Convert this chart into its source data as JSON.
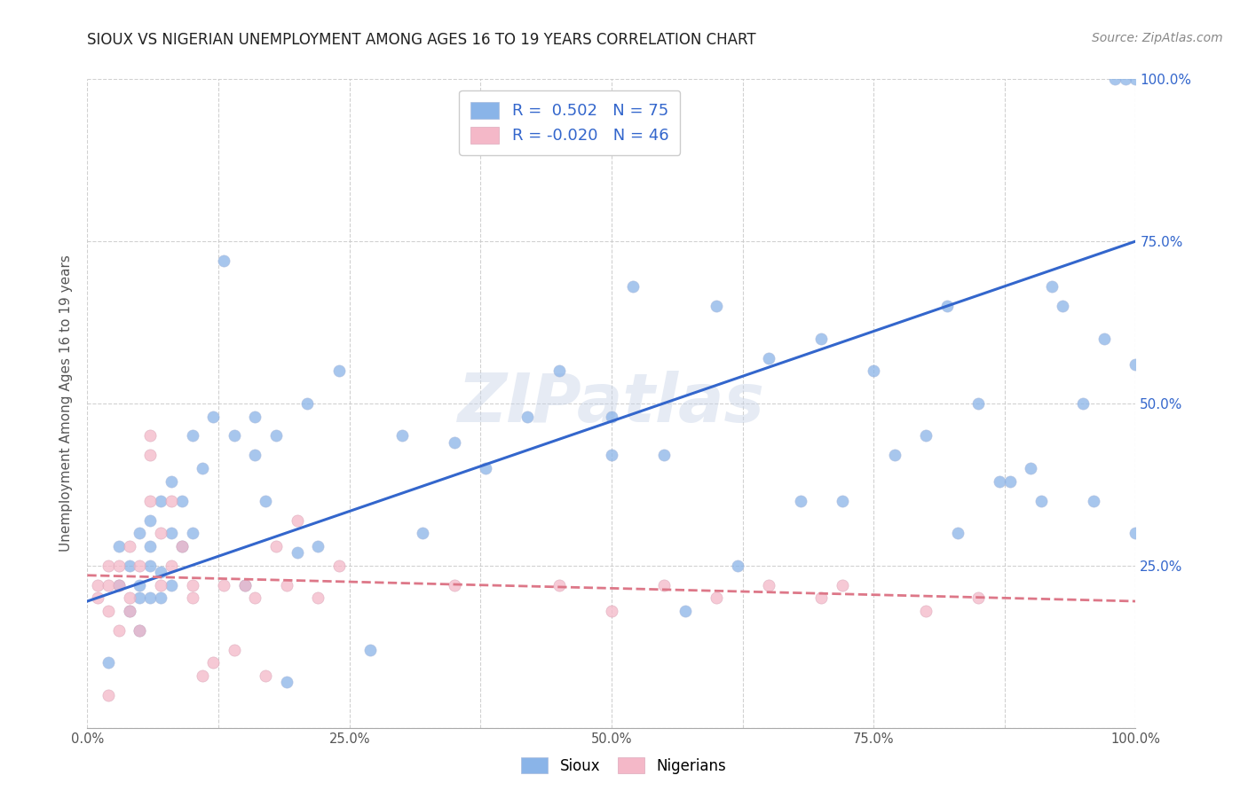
{
  "title": "SIOUX VS NIGERIAN UNEMPLOYMENT AMONG AGES 16 TO 19 YEARS CORRELATION CHART",
  "source": "Source: ZipAtlas.com",
  "ylabel": "Unemployment Among Ages 16 to 19 years",
  "xlim": [
    0.0,
    1.0
  ],
  "ylim": [
    0.0,
    1.0
  ],
  "xticks": [
    0.0,
    0.125,
    0.25,
    0.375,
    0.5,
    0.625,
    0.75,
    0.875,
    1.0
  ],
  "xticklabels": [
    "0.0%",
    "",
    "25.0%",
    "",
    "50.0%",
    "",
    "75.0%",
    "",
    "100.0%"
  ],
  "yticks_right": [
    0.25,
    0.5,
    0.75,
    1.0
  ],
  "yticklabels_right": [
    "25.0%",
    "50.0%",
    "75.0%",
    "100.0%"
  ],
  "sioux_color": "#8ab4e8",
  "nigerian_color": "#f4b8c8",
  "sioux_line_color": "#3366cc",
  "nigerian_line_color": "#dd7788",
  "watermark": "ZIPatlas",
  "legend_R_sioux": "R =  0.502",
  "legend_N_sioux": "N = 75",
  "legend_R_nigerian": "R = -0.020",
  "legend_N_nigerian": "N = 46",
  "sioux_scatter_x": [
    0.02,
    0.03,
    0.04,
    0.04,
    0.05,
    0.05,
    0.05,
    0.05,
    0.06,
    0.06,
    0.06,
    0.07,
    0.07,
    0.07,
    0.08,
    0.08,
    0.09,
    0.09,
    0.1,
    0.1,
    0.11,
    0.12,
    0.13,
    0.14,
    0.15,
    0.16,
    0.16,
    0.17,
    0.18,
    0.19,
    0.2,
    0.21,
    0.22,
    0.24,
    0.27,
    0.3,
    0.35,
    0.38,
    0.42,
    0.45,
    0.5,
    0.52,
    0.55,
    0.57,
    0.6,
    0.62,
    0.65,
    0.68,
    0.7,
    0.72,
    0.75,
    0.77,
    0.8,
    0.82,
    0.83,
    0.85,
    0.87,
    0.88,
    0.9,
    0.91,
    0.92,
    0.93,
    0.95,
    0.96,
    0.97,
    0.98,
    0.99,
    1.0,
    1.0,
    1.0,
    0.03,
    0.06,
    0.08,
    0.32,
    0.5
  ],
  "sioux_scatter_y": [
    0.1,
    0.22,
    0.18,
    0.25,
    0.15,
    0.22,
    0.3,
    0.2,
    0.25,
    0.28,
    0.32,
    0.24,
    0.35,
    0.2,
    0.22,
    0.38,
    0.28,
    0.35,
    0.3,
    0.45,
    0.4,
    0.48,
    0.72,
    0.45,
    0.22,
    0.42,
    0.48,
    0.35,
    0.45,
    0.07,
    0.27,
    0.5,
    0.28,
    0.55,
    0.12,
    0.45,
    0.44,
    0.4,
    0.48,
    0.55,
    0.48,
    0.68,
    0.42,
    0.18,
    0.65,
    0.25,
    0.57,
    0.35,
    0.6,
    0.35,
    0.55,
    0.42,
    0.45,
    0.65,
    0.3,
    0.5,
    0.38,
    0.38,
    0.4,
    0.35,
    0.68,
    0.65,
    0.5,
    0.35,
    0.6,
    1.0,
    1.0,
    1.0,
    0.56,
    0.3,
    0.28,
    0.2,
    0.3,
    0.3,
    0.42
  ],
  "nigerian_scatter_x": [
    0.01,
    0.01,
    0.02,
    0.02,
    0.02,
    0.02,
    0.03,
    0.03,
    0.03,
    0.04,
    0.04,
    0.04,
    0.05,
    0.05,
    0.06,
    0.06,
    0.07,
    0.07,
    0.08,
    0.08,
    0.09,
    0.1,
    0.1,
    0.11,
    0.12,
    0.13,
    0.14,
    0.15,
    0.16,
    0.17,
    0.18,
    0.19,
    0.2,
    0.22,
    0.24,
    0.35,
    0.45,
    0.5,
    0.55,
    0.6,
    0.65,
    0.7,
    0.72,
    0.8,
    0.85,
    0.06
  ],
  "nigerian_scatter_y": [
    0.2,
    0.22,
    0.18,
    0.22,
    0.25,
    0.05,
    0.22,
    0.25,
    0.15,
    0.2,
    0.28,
    0.18,
    0.25,
    0.15,
    0.35,
    0.42,
    0.3,
    0.22,
    0.25,
    0.35,
    0.28,
    0.2,
    0.22,
    0.08,
    0.1,
    0.22,
    0.12,
    0.22,
    0.2,
    0.08,
    0.28,
    0.22,
    0.32,
    0.2,
    0.25,
    0.22,
    0.22,
    0.18,
    0.22,
    0.2,
    0.22,
    0.2,
    0.22,
    0.18,
    0.2,
    0.45
  ],
  "sioux_trendline_x": [
    0.0,
    1.0
  ],
  "sioux_trendline_y": [
    0.195,
    0.75
  ],
  "nigerian_trendline_x": [
    0.0,
    1.0
  ],
  "nigerian_trendline_y": [
    0.235,
    0.195
  ],
  "background_color": "#ffffff",
  "grid_color": "#cccccc"
}
